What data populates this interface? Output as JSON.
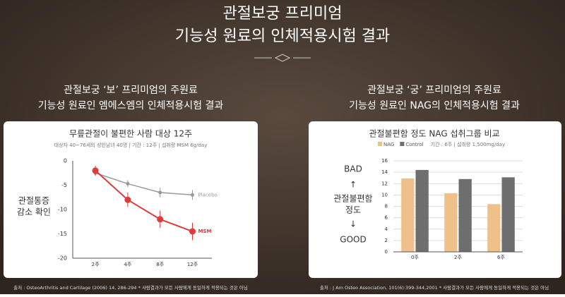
{
  "header": {
    "title_line1": "관절보궁 프리미엄",
    "title_line2": "기능성 원료의 인체적용시험 결과"
  },
  "left": {
    "heading_line1": "관절보궁 ‘보’ 프리미엄의 주원료",
    "heading_line2": "기능성 원료인 엠에스엠의 인체적용시험 결과",
    "side_label_line1": "관절통증",
    "side_label_line2": "감소 확인",
    "source": "출처 : OsteoArthritis and Cartilage (2006) 14, 286-294 * 사람결과가 모든 사람에게 동일하게 적용되는 것은 아님"
  },
  "right": {
    "heading_line1": "관절보궁 ‘궁’ 프리미엄의 주원료",
    "heading_line2": "기능성 원료인 NAG의 인체적용시험 결과",
    "bad": "BAD",
    "up": "↑",
    "side_label_line1": "관절불편함",
    "side_label_line2": "정도",
    "down": "↓",
    "good": "GOOD",
    "source": "출처 : J Am Osteo Association, 101(6):399-344,2001 * 사람결과가 모든 사람에게 동일하게 적용되는 것은 아님"
  },
  "chart_data": [
    {
      "type": "line",
      "title": "무릎관절이 불편한 사람 대상 12주",
      "subtitle": "대상자 40~76세의 성인남녀 40명 | 기간 : 12주 | 섭취량 MSM 6g/day",
      "categories": [
        "2주",
        "4주",
        "8주",
        "12주"
      ],
      "series": [
        {
          "name": "Placebo",
          "color": "#999999",
          "values": [
            -2.5,
            -4.7,
            -6.5,
            -7
          ],
          "errors": [
            0.6,
            0.7,
            1.0,
            1.0
          ]
        },
        {
          "name": "MSM",
          "color": "#e03a3a",
          "values": [
            -2,
            -8,
            -12,
            -14.5
          ],
          "errors": [
            1.0,
            1.5,
            1.8,
            1.8
          ]
        }
      ],
      "ylim": [
        -20,
        0
      ],
      "yticks": [
        0,
        -5,
        -10,
        -15,
        -20
      ],
      "grid": false
    },
    {
      "type": "bar",
      "title": "관절불편함 정도 NAG 섭취그룹 비교",
      "subtitle": "기간 : 6주 | 섭취량 1,500mg/day",
      "categories": [
        "0주",
        "2주",
        "6주"
      ],
      "series": [
        {
          "name": "NAG",
          "color": "#f0c08a",
          "values": [
            12.9,
            10.3,
            8.4
          ]
        },
        {
          "name": "Control",
          "color": "#6e6e6e",
          "values": [
            14.4,
            12.8,
            13.1
          ]
        }
      ],
      "ylim": [
        0,
        16
      ],
      "yticks": [
        0,
        2,
        4,
        6,
        8,
        10,
        12,
        14,
        16
      ],
      "grid": true
    }
  ]
}
